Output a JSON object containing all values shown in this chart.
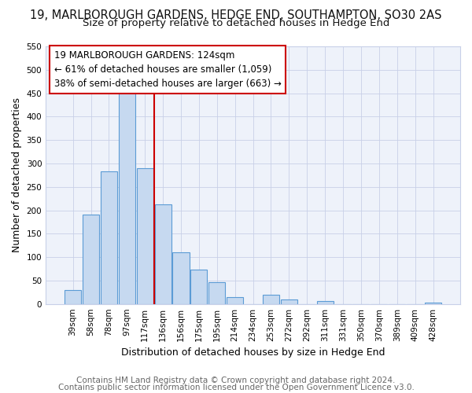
{
  "title_line1": "19, MARLBOROUGH GARDENS, HEDGE END, SOUTHAMPTON, SO30 2AS",
  "title_line2": "Size of property relative to detached houses in Hedge End",
  "xlabel": "Distribution of detached houses by size in Hedge End",
  "ylabel": "Number of detached properties",
  "bin_labels": [
    "39sqm",
    "58sqm",
    "78sqm",
    "97sqm",
    "117sqm",
    "136sqm",
    "156sqm",
    "175sqm",
    "195sqm",
    "214sqm",
    "234sqm",
    "253sqm",
    "272sqm",
    "292sqm",
    "311sqm",
    "331sqm",
    "350sqm",
    "370sqm",
    "389sqm",
    "409sqm",
    "428sqm"
  ],
  "bar_heights": [
    30,
    190,
    283,
    456,
    290,
    212,
    110,
    74,
    46,
    14,
    0,
    20,
    10,
    0,
    6,
    0,
    0,
    0,
    0,
    0,
    3
  ],
  "bar_color": "#c6d9f0",
  "bar_edge_color": "#5b9bd5",
  "vline_x": 4.5,
  "vline_color": "#cc0000",
  "annotation_line1": "19 MARLBOROUGH GARDENS: 124sqm",
  "annotation_line2": "← 61% of detached houses are smaller (1,059)",
  "annotation_line3": "38% of semi-detached houses are larger (663) →",
  "annotation_box_color": "#cc0000",
  "ylim": [
    0,
    550
  ],
  "yticks": [
    0,
    50,
    100,
    150,
    200,
    250,
    300,
    350,
    400,
    450,
    500,
    550
  ],
  "footer_line1": "Contains HM Land Registry data © Crown copyright and database right 2024.",
  "footer_line2": "Contains public sector information licensed under the Open Government Licence v3.0.",
  "title_fontsize": 10.5,
  "subtitle_fontsize": 9.5,
  "axis_label_fontsize": 9,
  "tick_fontsize": 7.5,
  "annotation_fontsize": 8.5,
  "footer_fontsize": 7.5,
  "figure_bg": "#ffffff",
  "axes_bg": "#eef2fa",
  "grid_color": "#c8d0e8"
}
